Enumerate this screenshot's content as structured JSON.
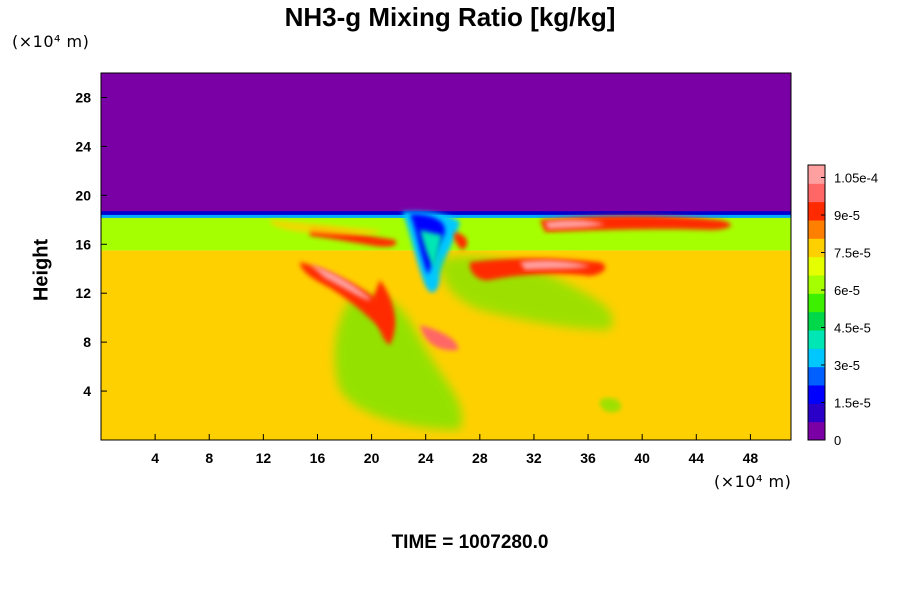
{
  "chart_data": {
    "type": "heatmap",
    "title": "NH3-g Mixing Ratio [kg/kg]",
    "xlabel": "",
    "ylabel": "Height",
    "x_unit": "(×10⁴ m)",
    "y_unit": "(×10⁴ m)",
    "xlim": [
      0,
      51
    ],
    "ylim": [
      0,
      30
    ],
    "x_ticks": [
      "4",
      "8",
      "12",
      "16",
      "20",
      "24",
      "28",
      "32",
      "36",
      "40",
      "44",
      "48"
    ],
    "y_ticks": [
      "4",
      "8",
      "12",
      "16",
      "20",
      "24",
      "28"
    ],
    "colorbar": {
      "vmin": 0,
      "vmax": 0.00011,
      "ticks": [
        {
          "value": 0,
          "label": "0"
        },
        {
          "value": 1.5e-05,
          "label": "1.5e-5"
        },
        {
          "value": 3e-05,
          "label": "3e-5"
        },
        {
          "value": 4.5e-05,
          "label": "4.5e-5"
        },
        {
          "value": 6e-05,
          "label": "6e-5"
        },
        {
          "value": 7.5e-05,
          "label": "7.5e-5"
        },
        {
          "value": 9e-05,
          "label": "9e-5"
        },
        {
          "value": 0.000105,
          "label": "1.05e-4"
        }
      ],
      "colors": [
        "#7a00a6",
        "#2a00c8",
        "#0000ff",
        "#0060ff",
        "#00c8ff",
        "#00e6b4",
        "#00d84a",
        "#3cf000",
        "#a6ff00",
        "#e6ff00",
        "#ffd000",
        "#ff8000",
        "#ff2a00",
        "#ff6666",
        "#ffa0a0"
      ]
    },
    "regions": [
      {
        "name": "upper layer",
        "y_range": [
          18.6,
          30
        ],
        "value": 0
      },
      {
        "name": "lower layer",
        "y_range": [
          0,
          15.5
        ],
        "value": 8e-05
      },
      {
        "name": "band",
        "y_range": [
          15.5,
          18.2
        ],
        "value": 6.2e-05
      }
    ]
  },
  "time_label": "TIME = 1007280.0"
}
